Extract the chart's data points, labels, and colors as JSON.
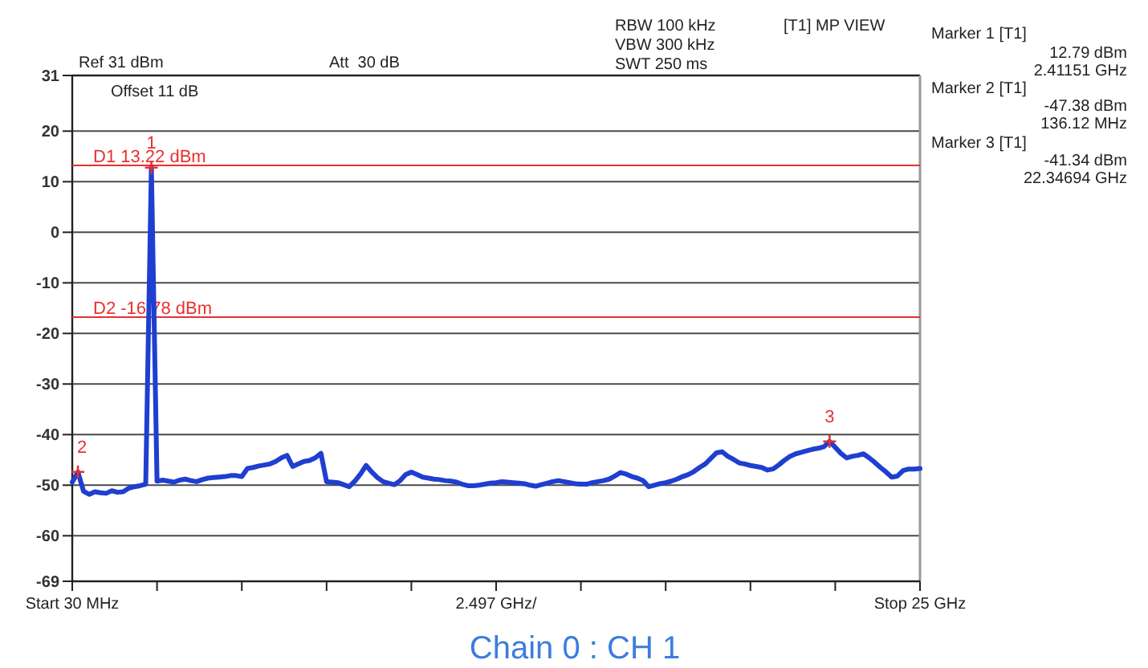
{
  "chart_data": {
    "type": "line",
    "title": "Chain 0 : CH 1",
    "xlabel": "2.497 GHz/",
    "categories": [
      "Start 30 MHz",
      null,
      null,
      null,
      null,
      null,
      null,
      null,
      null,
      null,
      null,
      null,
      null,
      null,
      null,
      null,
      null,
      null,
      null,
      null,
      null,
      null,
      null,
      null,
      null,
      null,
      null,
      null,
      null,
      null,
      null,
      null,
      null,
      null,
      null,
      null,
      null,
      null,
      null,
      null,
      null,
      null,
      null,
      null,
      null,
      null,
      null,
      null,
      null,
      null,
      null,
      null,
      null,
      null,
      null,
      null,
      null,
      null,
      null,
      null,
      null,
      null,
      null,
      null,
      null,
      null,
      null,
      null,
      null,
      null,
      null,
      null,
      null,
      null,
      null,
      null,
      null,
      null,
      null,
      null,
      null,
      null,
      null,
      null,
      null,
      null,
      null,
      null,
      null,
      null,
      null,
      null,
      null,
      null,
      null,
      null,
      null,
      null,
      null,
      null,
      null,
      null,
      null,
      null,
      null,
      null,
      null,
      null,
      null,
      null,
      null,
      null,
      null,
      null,
      null,
      null,
      null,
      null,
      null,
      null,
      null,
      null,
      null,
      null,
      null,
      null,
      null,
      null,
      null,
      null,
      null,
      null,
      null,
      null,
      null,
      null,
      null,
      null,
      null,
      null,
      null,
      null,
      null,
      null,
      null,
      null,
      null,
      null,
      null,
      null,
      "Stop 25 GHz"
    ],
    "ylim": [
      -69,
      31
    ],
    "yticks": [
      31,
      20,
      10,
      0,
      -10,
      -20,
      -30,
      -40,
      -50,
      -60,
      -69
    ],
    "grid": "y",
    "series": [
      {
        "color": "#1f3fd0",
        "values": [
          -49.4,
          -47.4,
          -51.2,
          -51.8,
          -51.3,
          -51.5,
          -51.6,
          -51.1,
          -51.4,
          -51.3,
          -50.6,
          -50.3,
          -50.1,
          -49.8,
          12.79,
          -49.2,
          -49,
          -49.2,
          -49.4,
          -49,
          -48.8,
          -49.1,
          -49.3,
          -48.9,
          -48.6,
          -48.5,
          -48.4,
          -48.3,
          -48.1,
          -48.1,
          -48.3,
          -46.7,
          -46.5,
          -46.2,
          -46,
          -45.8,
          -45.3,
          -44.6,
          -44.1,
          -46.3,
          -45.8,
          -45.3,
          -45.1,
          -44.6,
          -43.7,
          -49.3,
          -49.4,
          -49.5,
          -49.9,
          -50.3,
          -49.2,
          -47.8,
          -46.1,
          -47.4,
          -48.5,
          -49.3,
          -49.6,
          -49.9,
          -49.1,
          -47.9,
          -47.4,
          -47.9,
          -48.4,
          -48.6,
          -48.8,
          -48.9,
          -49.1,
          -49.2,
          -49.4,
          -49.8,
          -50.1,
          -50.1,
          -50,
          -49.8,
          -49.6,
          -49.5,
          -49.3,
          -49.4,
          -49.5,
          -49.6,
          -49.7,
          -50,
          -50.2,
          -49.9,
          -49.6,
          -49.3,
          -49.1,
          -49.3,
          -49.5,
          -49.7,
          -49.8,
          -49.8,
          -49.5,
          -49.3,
          -49.1,
          -48.8,
          -48.2,
          -47.5,
          -47.8,
          -48.3,
          -48.6,
          -49.1,
          -50.3,
          -50,
          -49.7,
          -49.5,
          -49.2,
          -48.8,
          -48.3,
          -47.9,
          -47.3,
          -46.5,
          -45.8,
          -44.7,
          -43.6,
          -43.4,
          -44.3,
          -44.9,
          -45.6,
          -45.8,
          -46.1,
          -46.3,
          -46.5,
          -47,
          -46.8,
          -46,
          -45.1,
          -44.3,
          -43.8,
          -43.5,
          -43.2,
          -42.9,
          -42.7,
          -42.4,
          -41.34,
          -42.5,
          -43.7,
          -44.6,
          -44.3,
          -44.1,
          -43.8,
          -44.6,
          -45.5,
          -46.5,
          -47.4,
          -48.4,
          -48.2,
          -47.1,
          -46.8,
          -46.8,
          -46.7
        ]
      },
      {
        "type": "scatter",
        "name": "1",
        "marker": "cross",
        "color": "#e83030",
        "values": [
          null,
          null,
          null,
          null,
          null,
          null,
          null,
          null,
          null,
          null,
          null,
          null,
          null,
          null,
          12.79,
          null,
          null,
          null,
          null,
          null,
          null,
          null,
          null,
          null,
          null,
          null,
          null,
          null,
          null,
          null,
          null,
          null,
          null,
          null,
          null,
          null,
          null,
          null,
          null,
          null,
          null,
          null,
          null,
          null,
          null,
          null,
          null,
          null,
          null,
          null,
          null,
          null,
          null,
          null,
          null,
          null,
          null,
          null,
          null,
          null,
          null,
          null,
          null,
          null,
          null,
          null,
          null,
          null,
          null,
          null,
          null,
          null,
          null,
          null,
          null,
          null,
          null,
          null,
          null,
          null,
          null,
          null,
          null,
          null,
          null,
          null,
          null,
          null,
          null,
          null,
          null,
          null,
          null,
          null,
          null,
          null,
          null,
          null,
          null,
          null,
          null,
          null,
          null,
          null,
          null,
          null,
          null,
          null,
          null,
          null,
          null,
          null,
          null,
          null,
          null,
          null,
          null,
          null,
          null,
          null,
          null,
          null,
          null,
          null,
          null,
          null,
          null,
          null,
          null,
          null,
          null,
          null,
          null,
          null,
          null,
          null,
          null,
          null,
          null,
          null,
          null,
          null,
          null,
          null,
          null,
          null,
          null,
          null,
          null,
          null,
          null
        ]
      },
      {
        "type": "scatter",
        "name": "2",
        "marker": "cross",
        "color": "#e83030",
        "values": [
          null,
          -47.38,
          null,
          null,
          null,
          null,
          null,
          null,
          null,
          null,
          null,
          null,
          null,
          null,
          null,
          null,
          null,
          null,
          null,
          null,
          null,
          null,
          null,
          null,
          null,
          null,
          null,
          null,
          null,
          null,
          null,
          null,
          null,
          null,
          null,
          null,
          null,
          null,
          null,
          null,
          null,
          null,
          null,
          null,
          null,
          null,
          null,
          null,
          null,
          null,
          null,
          null,
          null,
          null,
          null,
          null,
          null,
          null,
          null,
          null,
          null,
          null,
          null,
          null,
          null,
          null,
          null,
          null,
          null,
          null,
          null,
          null,
          null,
          null,
          null,
          null,
          null,
          null,
          null,
          null,
          null,
          null,
          null,
          null,
          null,
          null,
          null,
          null,
          null,
          null,
          null,
          null,
          null,
          null,
          null,
          null,
          null,
          null,
          null,
          null,
          null,
          null,
          null,
          null,
          null,
          null,
          null,
          null,
          null,
          null,
          null,
          null,
          null,
          null,
          null,
          null,
          null,
          null,
          null,
          null,
          null,
          null,
          null,
          null,
          null,
          null,
          null,
          null,
          null,
          null,
          null,
          null,
          null,
          null,
          null,
          null,
          null,
          null,
          null,
          null,
          null,
          null,
          null,
          null,
          null,
          null,
          null,
          null,
          null,
          null,
          null
        ]
      },
      {
        "type": "scatter",
        "name": "3",
        "marker": "cross",
        "color": "#e83030",
        "values": [
          null,
          null,
          null,
          null,
          null,
          null,
          null,
          null,
          null,
          null,
          null,
          null,
          null,
          null,
          null,
          null,
          null,
          null,
          null,
          null,
          null,
          null,
          null,
          null,
          null,
          null,
          null,
          null,
          null,
          null,
          null,
          null,
          null,
          null,
          null,
          null,
          null,
          null,
          null,
          null,
          null,
          null,
          null,
          null,
          null,
          null,
          null,
          null,
          null,
          null,
          null,
          null,
          null,
          null,
          null,
          null,
          null,
          null,
          null,
          null,
          null,
          null,
          null,
          null,
          null,
          null,
          null,
          null,
          null,
          null,
          null,
          null,
          null,
          null,
          null,
          null,
          null,
          null,
          null,
          null,
          null,
          null,
          null,
          null,
          null,
          null,
          null,
          null,
          null,
          null,
          null,
          null,
          null,
          null,
          null,
          null,
          null,
          null,
          null,
          null,
          null,
          null,
          null,
          null,
          null,
          null,
          null,
          null,
          null,
          null,
          null,
          null,
          null,
          null,
          null,
          null,
          null,
          null,
          null,
          null,
          null,
          null,
          null,
          null,
          null,
          null,
          null,
          null,
          null,
          null,
          null,
          null,
          null,
          null,
          -41.34,
          null,
          null,
          null,
          null,
          null,
          null,
          null,
          null,
          null,
          null,
          null,
          null,
          null,
          null,
          null,
          null
        ]
      }
    ],
    "ref_lines": [
      {
        "axis": "y",
        "value": 13.22,
        "label": "D1 13.22 dBm",
        "color": "#e83030"
      },
      {
        "axis": "y",
        "value": -16.78,
        "label": "D2 -16.78 dBm",
        "color": "#e83030"
      }
    ],
    "annotations": [
      "Ref 31 dBm",
      "Att  30 dB",
      "Offset 11 dB",
      "RBW 100 kHz",
      "VBW 300 kHz",
      "SWT 250 ms",
      "[T1] MP VIEW",
      "Marker 1 [T1]",
      "12.79 dBm",
      "2.41151 GHz",
      "Marker 2 [T1]",
      "-47.38 dBm",
      "136.12 MHz",
      "Marker 3 [T1]",
      "-41.34 dBm",
      "22.34694 GHz"
    ]
  }
}
